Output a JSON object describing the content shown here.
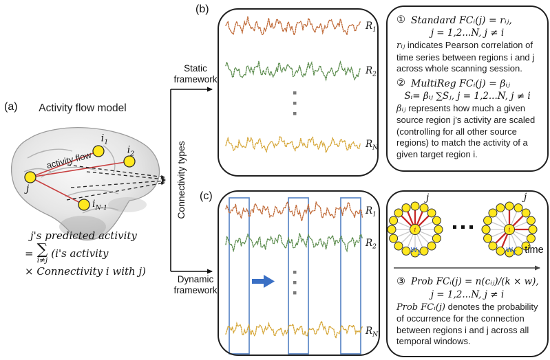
{
  "figure": {
    "panel_a": {
      "label": "(a)",
      "title": "Activity flow model",
      "activity_flow_label": "activity flow",
      "nodes": {
        "j": "j",
        "i1": {
          "b": "i",
          "s": "1"
        },
        "i2": {
          "b": "i",
          "s": "2"
        },
        "iN1": {
          "b": "i",
          "s": "N-1"
        }
      },
      "equation": {
        "line1": "j's predicted activity",
        "eq_sign": "=",
        "sum": "∑",
        "sum_sub": "i≠j",
        "line2": "(i's activity",
        "line3": "× Connectivity i with j)"
      },
      "node_color": "#ffe81f",
      "link_color": "#c84040"
    },
    "bracket": {
      "static": "Static framework",
      "connectivity": "Connectivity types",
      "dynamic": "Dynamic framework"
    },
    "panel_b": {
      "label": "(b)",
      "series": [
        {
          "b": "R",
          "s": "1",
          "color": "#c06a38"
        },
        {
          "b": "R",
          "s": "2",
          "color": "#5d8d4f"
        },
        {
          "b": "R",
          "s": "N",
          "color": "#d5a535"
        }
      ]
    },
    "panel_c": {
      "label": "(c)",
      "series": [
        {
          "b": "R",
          "s": "1",
          "color": "#c06a38"
        },
        {
          "b": "R",
          "s": "2",
          "color": "#5d8d4f"
        },
        {
          "b": "R",
          "s": "N",
          "color": "#d5a535"
        }
      ],
      "window_color": "#5b87c5",
      "arrow_color": "#3a6fc4"
    },
    "box1": {
      "eq1_num": "①",
      "eq1": "Standard FCᵢ(j) = rᵢⱼ,",
      "eq1_cond": "j = 1,2...N, j ≠ i",
      "para1_lead": "rᵢⱼ",
      "para1": "indicates Pearson correlation of time series between regions i and j across whole scanning session.",
      "eq2_num": "②",
      "eq2": "MultiReg FCᵢ(j) = βᵢⱼ",
      "eq2b": "Sᵢ= βᵢⱼ ∑Sⱼ, j = 1,2...N, j ≠ i",
      "para2_lead": "βᵢⱼ",
      "para2": "represents how much a given source region j's activity are scaled (controlling for all other source regions) to match the activity of a given target region i."
    },
    "box2": {
      "j1": "j",
      "j2": "j",
      "center_label": "i",
      "w1": {
        "b": "w",
        "s": "1"
      },
      "wT": {
        "b": "w",
        "s": "T"
      },
      "time": "time",
      "eq3_num": "③",
      "eq3": "Prob FCᵢ(j) = n(cᵢⱼ)/(k × w),",
      "eq3_cond": "j = 1,2...N, j ≠ i",
      "para3_lead": "Prob FCᵢ(j)",
      "para3": "denotes the probability of occurrence for the connection between regions i and j across all temporal windows.",
      "ring_node_color": "#ffe81f",
      "ring_red_edge_color": "#c62828",
      "ring_gray_edge_color": "#c9c9c9"
    }
  }
}
